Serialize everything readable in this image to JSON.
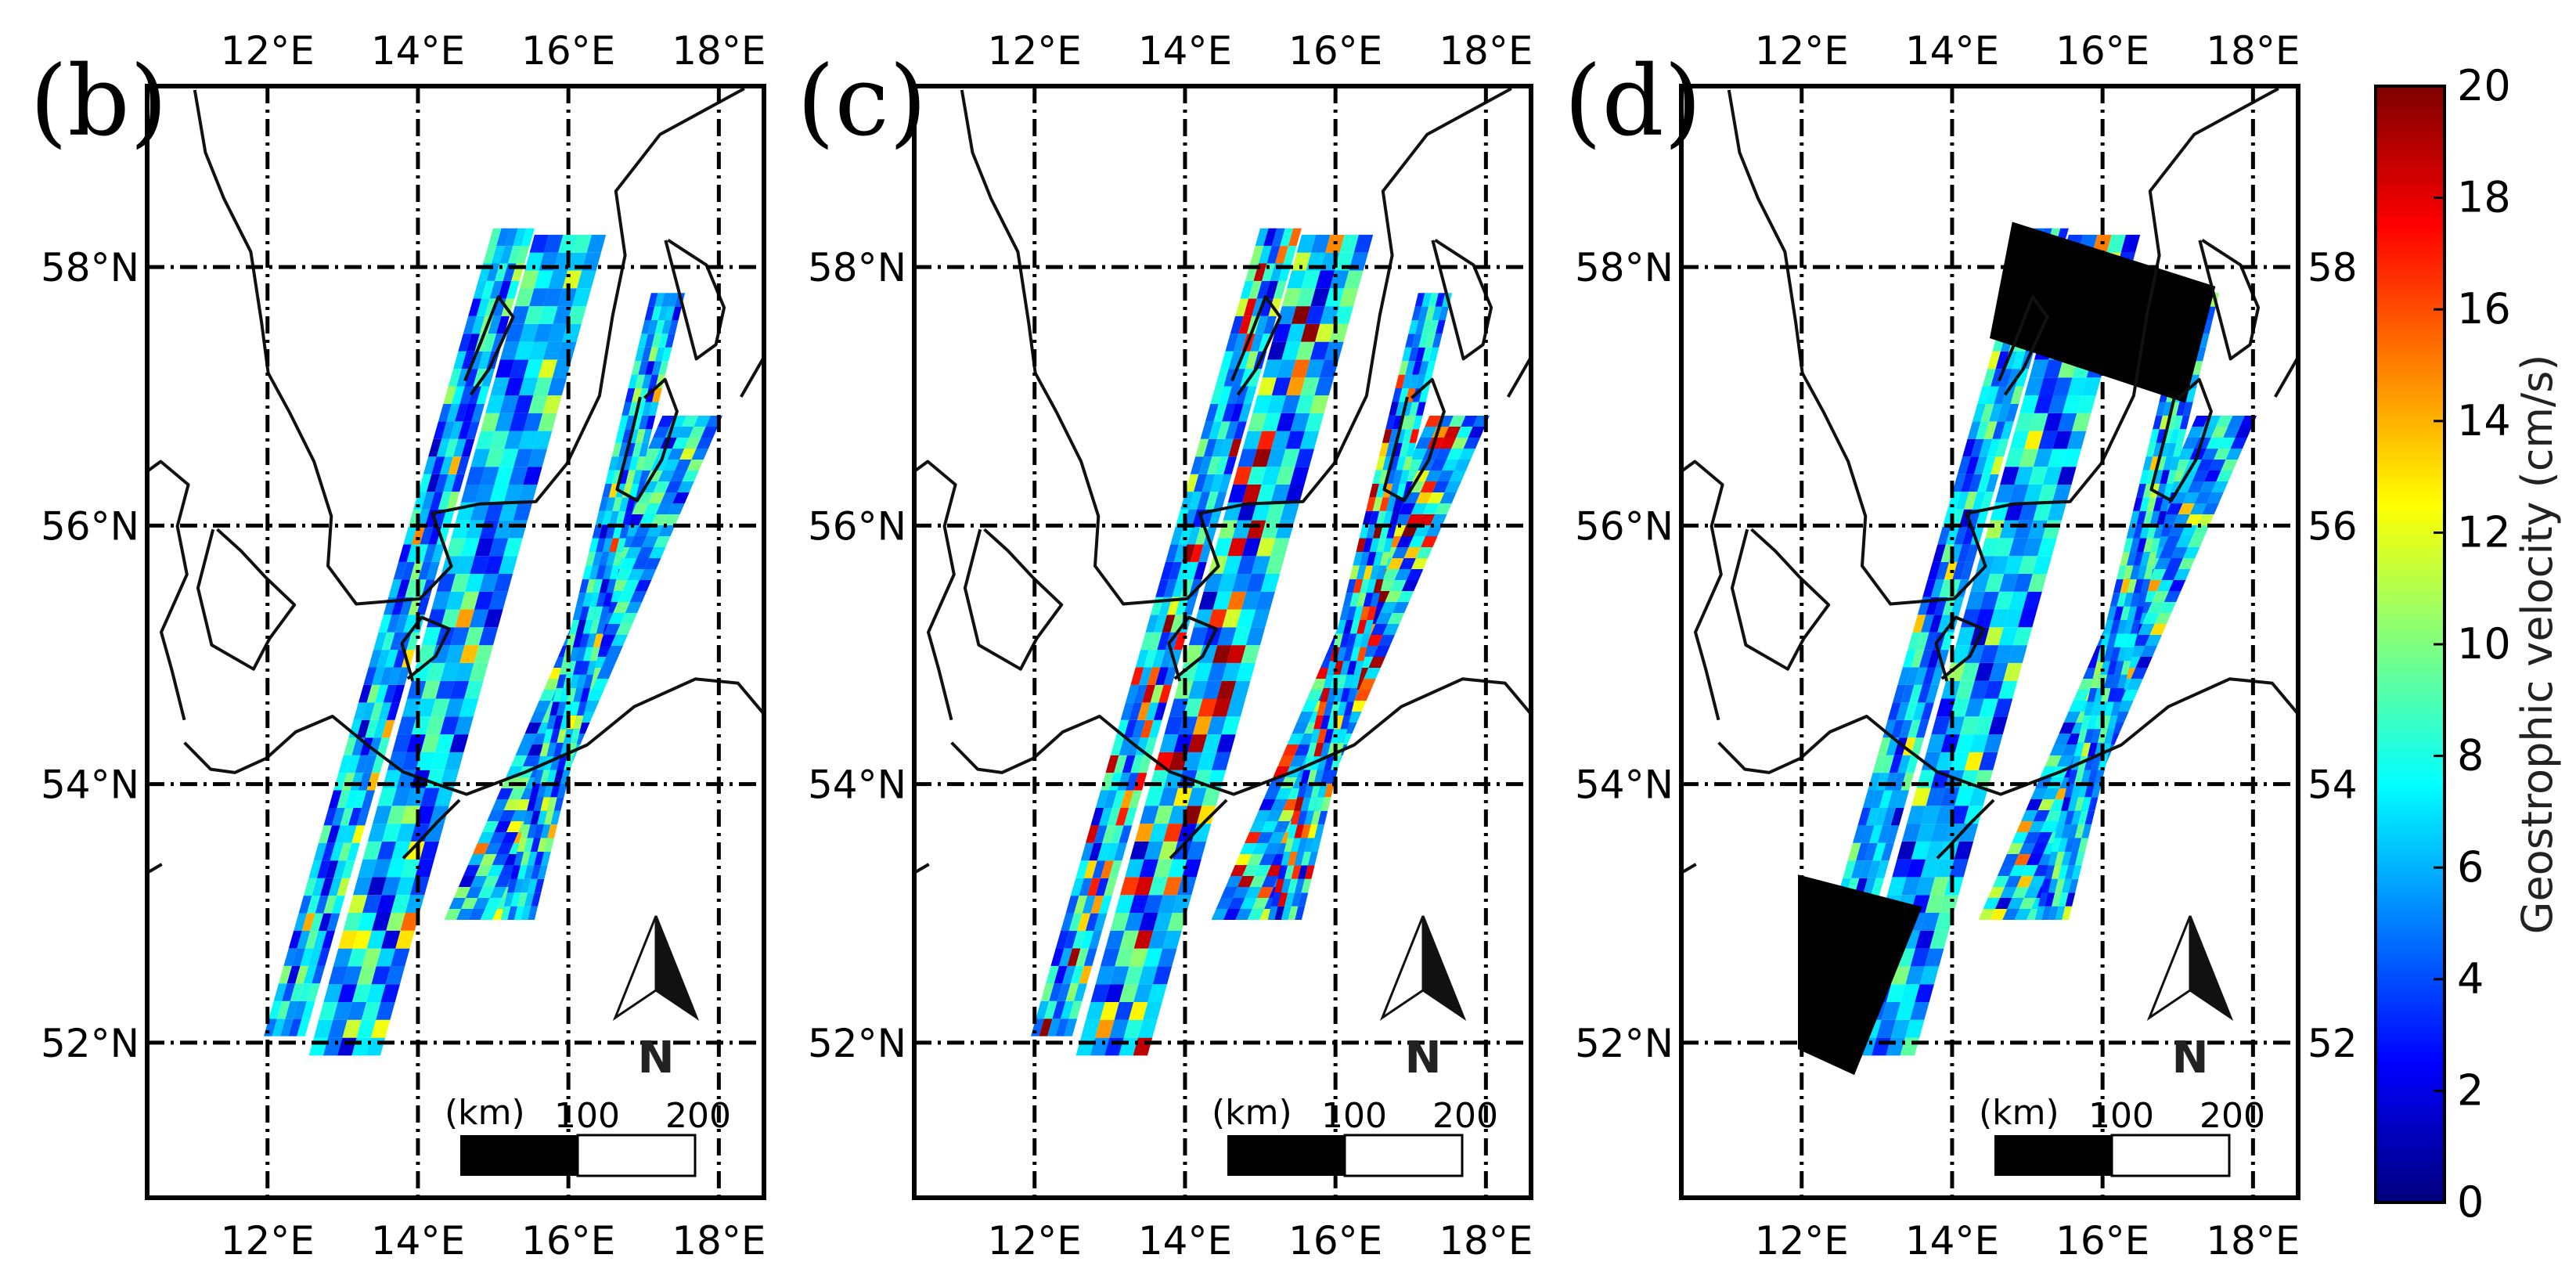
{
  "panels": [
    {
      "id": "b",
      "label": "(b)",
      "has_mask": false,
      "intensity": 1.0
    },
    {
      "id": "c",
      "label": "(c)",
      "has_mask": false,
      "intensity": 1.45
    },
    {
      "id": "d",
      "label": "(d)",
      "has_mask": true,
      "intensity": 1.0
    }
  ],
  "axes": {
    "lon_ticks": [
      "12°E",
      "14°E",
      "16°E",
      "18°E"
    ],
    "lat_ticks": [
      "58°N",
      "56°N",
      "54°N",
      "52°N"
    ],
    "lon_values": [
      12,
      14,
      16,
      18
    ],
    "lat_values": [
      58,
      56,
      54,
      52
    ],
    "lon_range": [
      10.4,
      18.6
    ],
    "lat_range": [
      50.8,
      59.4
    ]
  },
  "scale_bar": {
    "unit": "(km)",
    "labels": [
      "100",
      "200"
    ]
  },
  "north_arrow": {
    "label": "N"
  },
  "colorbar": {
    "label": "Geostrophic velocity (cm/s)",
    "ticks": [
      "20",
      "18",
      "16",
      "14",
      "12",
      "10",
      "8",
      "6",
      "4",
      "2",
      "0"
    ],
    "range": [
      0,
      20
    ],
    "colormap": "jet",
    "stops": [
      "#00007f",
      "#0000ff",
      "#007fff",
      "#00ffff",
      "#7fff7f",
      "#ffff00",
      "#ff7f00",
      "#ff0000",
      "#7f0000"
    ]
  },
  "right_axis_ticks": [
    "58",
    "56",
    "54",
    "52"
  ],
  "colors": {
    "frame": "#000000",
    "land_outline": "#111111",
    "mask": "#000000"
  }
}
